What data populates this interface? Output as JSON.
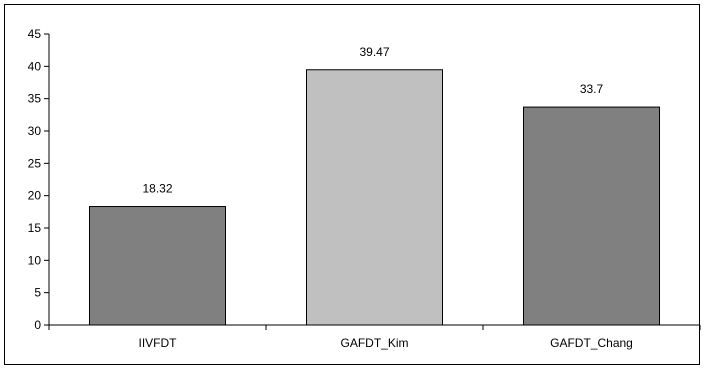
{
  "chart_data": {
    "type": "bar",
    "categories": [
      "IIVFDT",
      "GAFDT_Kim",
      "GAFDT_Chang"
    ],
    "values": [
      18.32,
      39.47,
      33.7
    ],
    "data_labels": [
      "18.32",
      "39.47",
      "33.7"
    ],
    "bar_colors": [
      "#808080",
      "#c0c0c0",
      "#808080"
    ],
    "title": "",
    "xlabel": "",
    "ylabel": "",
    "ylim": [
      0,
      45
    ],
    "yticks": [
      0,
      5,
      10,
      15,
      20,
      25,
      30,
      35,
      40,
      45
    ],
    "grid": false,
    "legend": "none"
  }
}
